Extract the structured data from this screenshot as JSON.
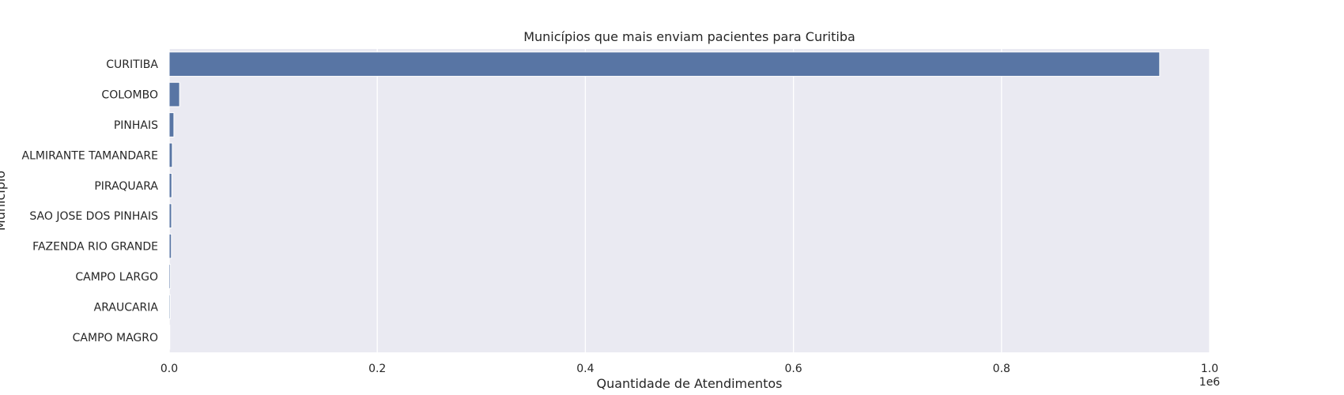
{
  "chart_data": {
    "type": "bar",
    "orientation": "horizontal",
    "title": "Municípios que mais enviam pacientes para Curitiba",
    "xlabel": "Quantidade de Atendimentos",
    "ylabel": "Município",
    "x_offset_label": "1e6",
    "categories": [
      "CURITIBA",
      "COLOMBO",
      "PINHAIS",
      "ALMIRANTE TAMANDARE",
      "PIRAQUARA",
      "SAO JOSE DOS PINHAIS",
      "FAZENDA RIO GRANDE",
      "CAMPO LARGO",
      "ARAUCARIA",
      "CAMPO MAGRO"
    ],
    "values": [
      952000,
      10000,
      4500,
      3000,
      2500,
      2300,
      2100,
      1200,
      1000,
      600
    ],
    "xlim": [
      0,
      1000000
    ],
    "xticks": [
      0,
      200000,
      400000,
      600000,
      800000,
      1000000
    ],
    "xtick_labels": [
      "0.0",
      "0.2",
      "0.4",
      "0.6",
      "0.8",
      "1.0"
    ],
    "grid": true,
    "bar_color": "#5875a4",
    "plot_background": "#eaeaf2",
    "grid_color": "#ffffff"
  }
}
